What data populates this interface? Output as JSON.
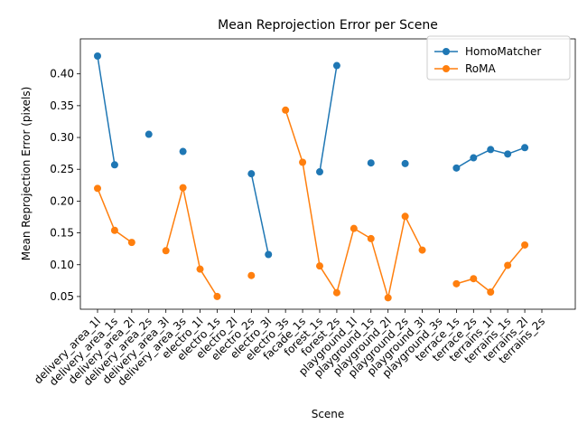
{
  "chart_data": {
    "type": "line",
    "title": "Mean Reprojection Error per Scene",
    "xlabel": "Scene",
    "ylabel": "Mean Reprojection Error (pixels)",
    "ylim": [
      0.03,
      0.455
    ],
    "yticks": [
      0.05,
      0.1,
      0.15,
      0.2,
      0.25,
      0.3,
      0.35,
      0.4
    ],
    "grid": false,
    "legend_position": "top-right",
    "categories": [
      "delivery_area_1l",
      "delivery_area_1s",
      "delivery_area_2l",
      "delivery_area_2s",
      "delivery_area_3l",
      "delivery_area_3s",
      "electro_1l",
      "electro_1s",
      "electro_2l",
      "electro_2s",
      "electro_3l",
      "electro_3s",
      "facade_1s",
      "forest_1s",
      "forest_2s",
      "playground_1l",
      "playground_1s",
      "playground_2l",
      "playground_2s",
      "playground_3l",
      "playground_3s",
      "terrace_1s",
      "terrace_2s",
      "terrains_1l",
      "terrains_1s",
      "terrains_2l",
      "terrains_2s"
    ],
    "series": [
      {
        "name": "HomoMatcher",
        "color": "#1f77b4",
        "values": [
          0.428,
          0.257,
          null,
          0.305,
          null,
          0.278,
          null,
          null,
          null,
          0.243,
          0.116,
          null,
          null,
          0.246,
          0.413,
          null,
          0.26,
          null,
          0.259,
          null,
          null,
          0.252,
          0.268,
          0.281,
          0.274,
          0.284,
          null
        ]
      },
      {
        "name": "RoMA",
        "color": "#ff7f0e",
        "values": [
          0.22,
          0.154,
          0.135,
          null,
          0.122,
          0.221,
          0.093,
          0.05,
          null,
          0.083,
          null,
          0.343,
          0.261,
          0.098,
          0.056,
          0.157,
          0.141,
          0.048,
          0.176,
          0.123,
          null,
          0.07,
          0.078,
          0.057,
          0.099,
          0.131,
          null
        ]
      }
    ]
  }
}
